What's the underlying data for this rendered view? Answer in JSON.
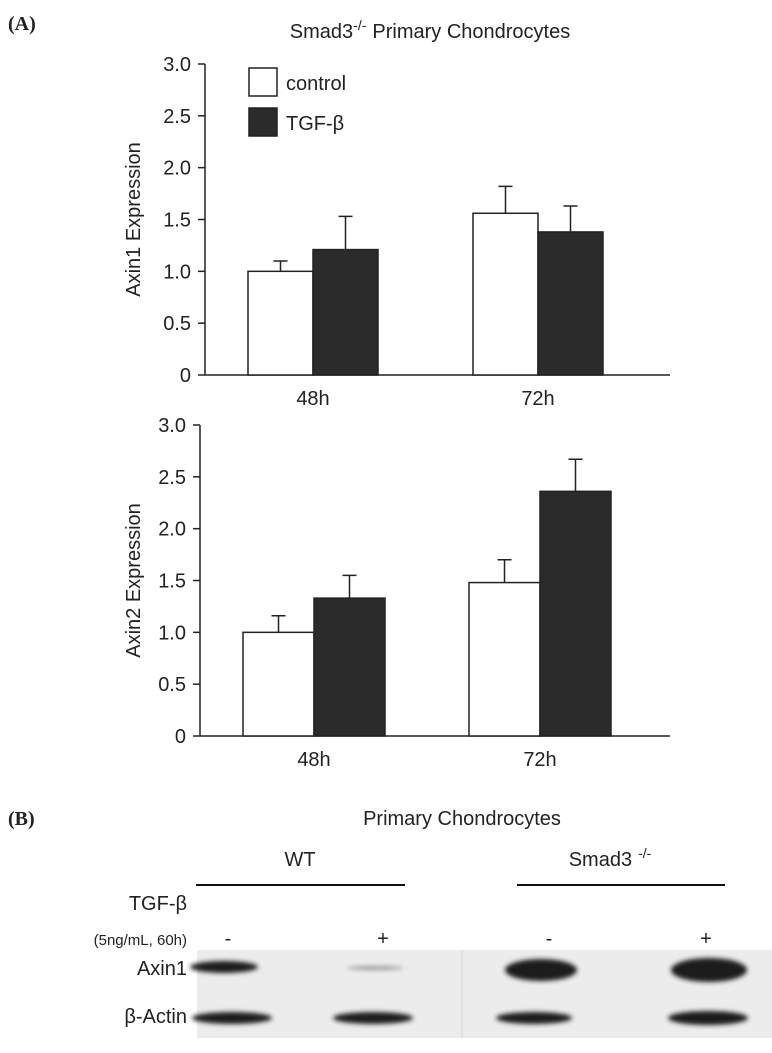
{
  "panel_a": {
    "label": "(A)"
  },
  "chart_data": [
    {
      "type": "bar",
      "title": "Smad3",
      "title_superscript": "-/-",
      "title_suffix": "Primary Chondrocytes",
      "y_label": "Axin1 Expression",
      "categories": [
        "48h",
        "72h"
      ],
      "series": [
        {
          "name": "control",
          "color": "#ffffff",
          "values": [
            1.0,
            1.56
          ],
          "errors": [
            0.1,
            0.26
          ]
        },
        {
          "name": "TGF-β",
          "color": "#2b2b2b",
          "values": [
            1.21,
            1.38
          ],
          "errors": [
            0.32,
            0.25
          ]
        }
      ],
      "ylim": [
        0,
        3
      ],
      "yticks": [
        0,
        0.5,
        {
          "value": 1,
          "label": "1.0"
        },
        1.5,
        {
          "value": 2,
          "label": "2.0"
        },
        2.5,
        {
          "value": 3,
          "label": "3.0"
        }
      ],
      "legend": "upper left"
    },
    {
      "type": "bar",
      "y_label": "Axin2 Expression",
      "categories": [
        "48h",
        "72h"
      ],
      "series": [
        {
          "name": "control",
          "color": "#ffffff",
          "values": [
            1.0,
            1.48
          ],
          "errors": [
            0.16,
            0.22
          ]
        },
        {
          "name": "TGF-β",
          "color": "#2b2b2b",
          "values": [
            1.33,
            2.36
          ],
          "errors": [
            0.22,
            0.31
          ]
        }
      ],
      "ylim": [
        0,
        3
      ],
      "yticks": [
        0,
        0.5,
        {
          "value": 1,
          "label": "1.0"
        },
        1.5,
        {
          "value": 2,
          "label": "2.0"
        },
        2.5,
        {
          "value": 3,
          "label": "3.0"
        }
      ]
    }
  ],
  "panel_b": {
    "label": "(B)",
    "title": "Primary Chondrocytes",
    "group_wt": "WT",
    "group_ko": "Smad3",
    "group_ko_superscript": "-/-",
    "treatment": "TGF-β",
    "treatment_detail": "(5ng/mL, 60h)",
    "treatments": [
      "-",
      "+",
      "-",
      "+"
    ],
    "rows": [
      "Axin1",
      "β-Actin"
    ]
  }
}
